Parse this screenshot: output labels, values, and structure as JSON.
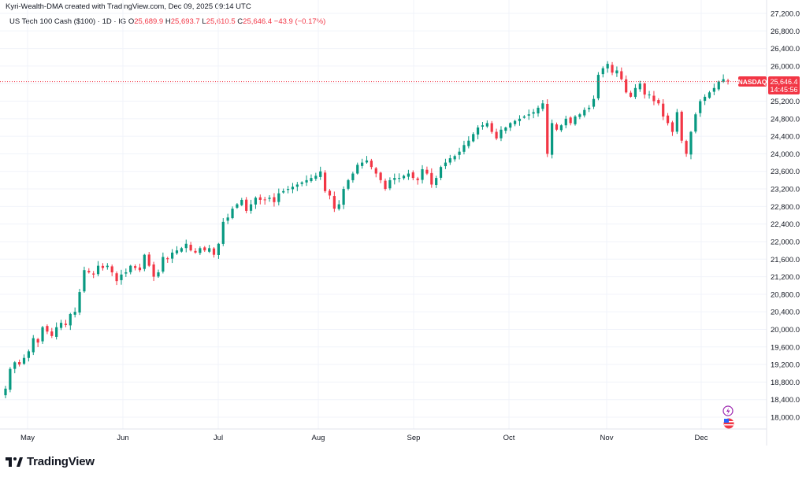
{
  "header": {
    "attribution": "Kyri-Wealth-DMA created with TradingView.com, Dec 09, 2025 09:14 UTC"
  },
  "legend": {
    "symbol_line": "US Tech 100 Cash ($100) · 1D · IG",
    "o_label": "O",
    "o_value": "25,689.9",
    "h_label": "H",
    "h_value": "25,693.7",
    "l_label": "L",
    "l_value": "25,610.5",
    "c_label": "C",
    "c_value": "25,646.4",
    "change": "−43.9 (−0.17%)"
  },
  "price_tag": {
    "name": "NASDAQ",
    "price": "25,646.4",
    "countdown": "14:45:56",
    "color": "#f23645"
  },
  "footer": {
    "brand": "TradingView"
  },
  "colors": {
    "up": "#089981",
    "down": "#f23645",
    "grid": "#f0f3fa"
  },
  "chart_data": {
    "type": "candlestick",
    "x_tick_labels": [
      "May",
      "Jun",
      "Jul",
      "Aug",
      "Sep",
      "Oct",
      "Nov",
      "Dec"
    ],
    "y_tick_labels": [
      "27,200.0",
      "26,800.0",
      "26,400.0",
      "26,000.0",
      "25,600.0",
      "25,200.0",
      "24,800.0",
      "24,400.0",
      "24,000.0",
      "23,600.0",
      "23,200.0",
      "22,800.0",
      "22,400.0",
      "22,000.0",
      "21,600.0",
      "21,200.0",
      "20,800.0",
      "20,400.0",
      "20,000.0",
      "19,600.0",
      "19,200.0",
      "18,800.0",
      "18,400.0",
      "18,000.0"
    ],
    "ylim": [
      17800,
      27250
    ],
    "last_price": 25646.4,
    "grid": true,
    "series": [
      {
        "name": "US Tech 100 Cash ($100)",
        "close": [
          18650,
          19100,
          19250,
          19200,
          19350,
          19500,
          19800,
          19700,
          20050,
          19950,
          19850,
          20050,
          20150,
          20100,
          20350,
          20400,
          20850,
          21350,
          21300,
          21250,
          21450,
          21400,
          21450,
          21300,
          21100,
          21250,
          21300,
          21450,
          21400,
          21350,
          21700,
          21450,
          21200,
          21300,
          21650,
          21600,
          21750,
          21800,
          21850,
          21950,
          21800,
          21750,
          21850,
          21800,
          21850,
          21700,
          21950,
          22450,
          22550,
          22750,
          22850,
          22950,
          22700,
          22850,
          23000,
          22950,
          22950,
          23000,
          22900,
          23100,
          23150,
          23200,
          23250,
          23300,
          23350,
          23400,
          23450,
          23500,
          23600,
          23150,
          23050,
          22750,
          22850,
          23200,
          23400,
          23550,
          23750,
          23800,
          23850,
          23700,
          23550,
          23400,
          23200,
          23400,
          23450,
          23450,
          23500,
          23550,
          23450,
          23400,
          23650,
          23550,
          23300,
          23450,
          23700,
          23800,
          23900,
          23950,
          24050,
          24200,
          24300,
          24450,
          24600,
          24650,
          24700,
          24500,
          24350,
          24550,
          24600,
          24700,
          24750,
          24800,
          24850,
          24900,
          24950,
          25050,
          25150,
          24000,
          24700,
          24550,
          24650,
          24800,
          24700,
          24850,
          24900,
          25000,
          25050,
          25250,
          25800,
          25950,
          26050,
          25850,
          25900,
          25700,
          25400,
          25300,
          25500,
          25600,
          25350,
          25350,
          25200,
          25150,
          24850,
          24700,
          24500,
          24950,
          24300,
          24000,
          24500,
          24900,
          25200,
          25300,
          25400,
          25500,
          25650,
          25700,
          25650
        ]
      }
    ]
  }
}
